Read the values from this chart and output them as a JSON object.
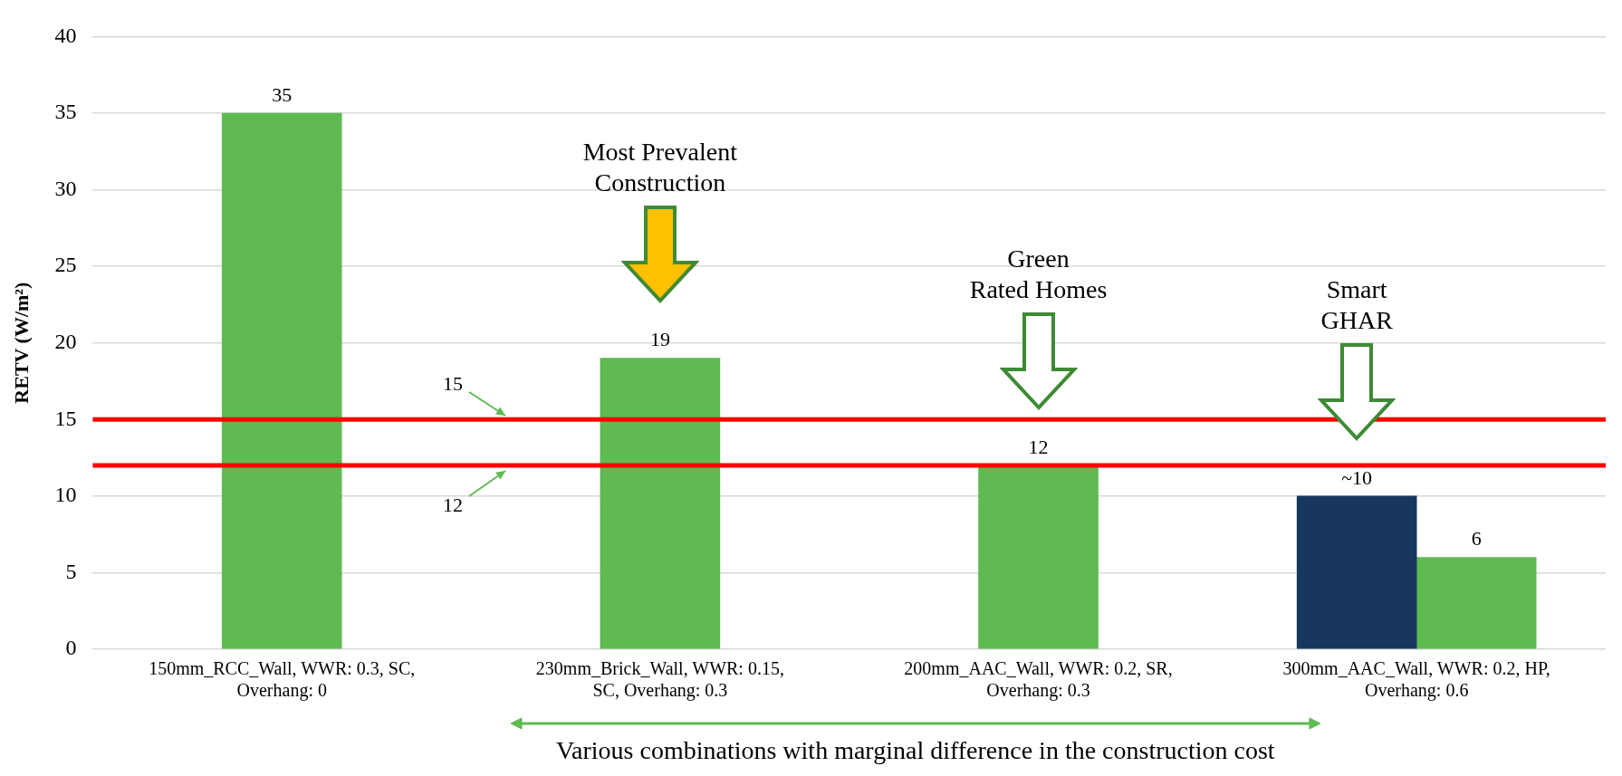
{
  "chart_data": {
    "type": "bar",
    "ylabel": "RETV (W/m²)",
    "categories": [
      "150mm_RCC_Wall, WWR: 0.3, SC, Overhang: 0",
      "230mm_Brick_Wall, WWR: 0.15, SC, Overhang: 0.3",
      "200mm_AAC_Wall, WWR: 0.2, SR, Overhang: 0.3",
      "300mm_AAC_Wall, WWR: 0.2, HP, Overhang: 0.6"
    ],
    "series": [
      {
        "color": "#17375e",
        "values": [
          null,
          null,
          null,
          10
        ],
        "value_labels": [
          null,
          null,
          null,
          "~10"
        ]
      },
      {
        "color": "#5fba52",
        "values": [
          35,
          19,
          12,
          6
        ],
        "value_labels": [
          "35",
          "19",
          "12",
          "6"
        ]
      }
    ],
    "ylim": [
      0,
      40
    ],
    "yticks": [
      0,
      5,
      10,
      15,
      20,
      25,
      30,
      35,
      40
    ],
    "grid": "y",
    "legend": false,
    "ref_lines": [
      {
        "axis": "y",
        "value": 15,
        "label": "15",
        "color": "#ff0000"
      },
      {
        "axis": "y",
        "value": 12,
        "label": "12",
        "color": "#ff0000"
      }
    ],
    "annotations": [
      "Most Prevalent Construction",
      "Green Rated Homes",
      "Smart GHAR",
      "Various combinations with marginal difference in the construction cost"
    ]
  }
}
